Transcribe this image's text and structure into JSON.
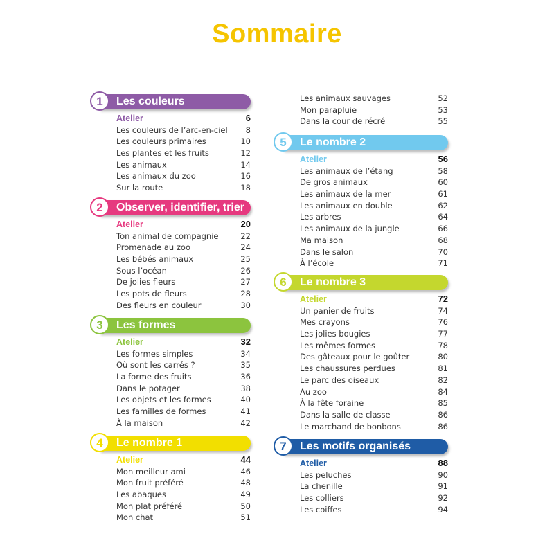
{
  "title": "Sommaire",
  "sections": [
    {
      "num": "1",
      "title": "Les couleurs",
      "color": "#8e5ba6",
      "entries": [
        [
          "Atelier",
          "6"
        ],
        [
          "Les couleurs de l’arc-en-ciel",
          "8"
        ],
        [
          "Les couleurs primaires",
          "10"
        ],
        [
          "Les plantes et les fruits",
          "12"
        ],
        [
          "Les animaux",
          "14"
        ],
        [
          "Les animaux du zoo",
          "16"
        ],
        [
          "Sur la route",
          "18"
        ]
      ]
    },
    {
      "num": "2",
      "title": "Observer, identifier, trier",
      "color": "#e6397f",
      "entries": [
        [
          "Atelier",
          "20"
        ],
        [
          "Ton animal de compagnie",
          "22"
        ],
        [
          "Promenade au zoo",
          "24"
        ],
        [
          "Les bébés animaux",
          "25"
        ],
        [
          "Sous l’océan",
          "26"
        ],
        [
          "De jolies fleurs",
          "27"
        ],
        [
          "Les pots de fleurs",
          "28"
        ],
        [
          "Des fleurs en couleur",
          "30"
        ]
      ]
    },
    {
      "num": "3",
      "title": "Les formes",
      "color": "#8cc43e",
      "entries": [
        [
          "Atelier",
          "32"
        ],
        [
          "Les formes simples",
          "34"
        ],
        [
          "Où sont les carrés ?",
          "35"
        ],
        [
          "La forme des fruits",
          "36"
        ],
        [
          "Dans le potager",
          "38"
        ],
        [
          "Les objets et les formes",
          "40"
        ],
        [
          "Les familles de formes",
          "41"
        ],
        [
          "À la maison",
          "42"
        ]
      ]
    },
    {
      "num": "4",
      "title": "Le nombre 1",
      "color": "#f2df00",
      "entries": [
        [
          "Atelier",
          "44"
        ],
        [
          "Mon meilleur ami",
          "46"
        ],
        [
          "Mon fruit préféré",
          "48"
        ],
        [
          "Les abaques",
          "49"
        ],
        [
          "Mon plat préféré",
          "50"
        ],
        [
          "Mon chat",
          "51"
        ]
      ]
    },
    {
      "num": "",
      "title": "",
      "color": "",
      "entries": [
        [
          "Les animaux sauvages",
          "52"
        ],
        [
          "Mon parapluie",
          "53"
        ],
        [
          "Dans la cour de récré",
          "55"
        ]
      ]
    },
    {
      "num": "5",
      "title": "Le nombre 2",
      "color": "#71c9ee",
      "entries": [
        [
          "Atelier",
          "56"
        ],
        [
          "Les animaux de l’étang",
          "58"
        ],
        [
          "De gros animaux",
          "60"
        ],
        [
          "Les animaux de la mer",
          "61"
        ],
        [
          "Les animaux en double",
          "62"
        ],
        [
          "Les arbres",
          "64"
        ],
        [
          "Les animaux de la jungle",
          "66"
        ],
        [
          "Ma maison",
          "68"
        ],
        [
          "Dans le salon",
          "70"
        ],
        [
          "À l’école",
          "71"
        ]
      ]
    },
    {
      "num": "6",
      "title": "Le nombre 3",
      "color": "#c4d72e",
      "entries": [
        [
          "Atelier",
          "72"
        ],
        [
          "Un panier de fruits",
          "74"
        ],
        [
          "Mes crayons",
          "76"
        ],
        [
          "Les jolies bougies",
          "77"
        ],
        [
          "Les mêmes formes",
          "78"
        ],
        [
          "Des gâteaux pour le goûter",
          "80"
        ],
        [
          "Les chaussures perdues",
          "81"
        ],
        [
          "Le parc des oiseaux",
          "82"
        ],
        [
          "Au zoo",
          "84"
        ],
        [
          "À la fête foraine",
          "85"
        ],
        [
          "Dans la salle de classe",
          "86"
        ],
        [
          "Le marchand de bonbons",
          "86"
        ]
      ]
    },
    {
      "num": "7",
      "title": "Les motifs organisés",
      "color": "#1f5ca6",
      "entries": [
        [
          "Atelier",
          "88"
        ],
        [
          "Les peluches",
          "90"
        ],
        [
          "La chenille",
          "91"
        ],
        [
          "Les colliers",
          "92"
        ],
        [
          "Les coiffes",
          "94"
        ]
      ]
    }
  ]
}
